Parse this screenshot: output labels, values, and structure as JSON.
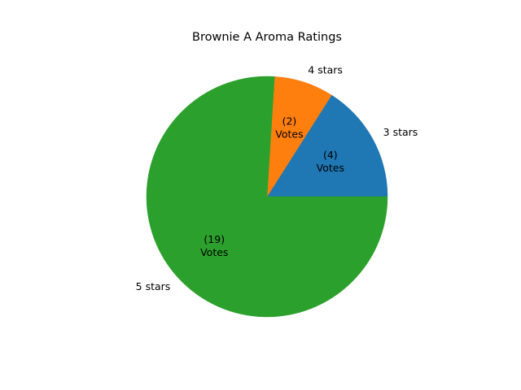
{
  "chart_data": {
    "type": "pie",
    "title": "Brownie A Aroma Ratings",
    "categories": [
      "3 stars",
      "4 stars",
      "5 stars"
    ],
    "values": [
      4,
      2,
      19
    ],
    "slice_labels": [
      [
        "(4)",
        "Votes"
      ],
      [
        "(2)",
        "Votes"
      ],
      [
        "(19)",
        "Votes"
      ]
    ],
    "colors": [
      "#1f77b4",
      "#ff7f0e",
      "#2ca02c"
    ],
    "start_angle_deg": 0,
    "direction": "counterclockwise",
    "legend": "none"
  }
}
